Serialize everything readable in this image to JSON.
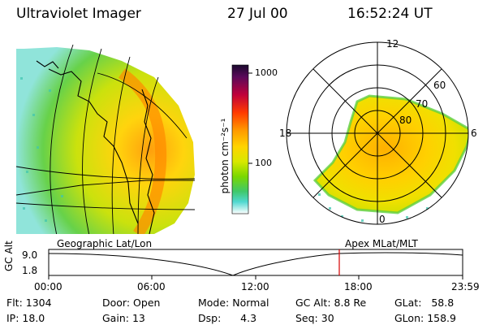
{
  "header": {
    "instrument": "Ultraviolet Imager",
    "date": "27 Jul 00",
    "time": "16:52:24 UT"
  },
  "colorbar": {
    "label": "photon cm⁻²s⁻¹",
    "ticks": [
      "1000",
      "100"
    ],
    "scale": "log"
  },
  "polar": {
    "mlt_labels": [
      "12",
      "18",
      "6",
      "0"
    ],
    "lat_labels": [
      "60",
      "70",
      "80"
    ]
  },
  "projection_labels": {
    "left": "Geographic Lat/Lon",
    "right": "Apex MLat/MLT"
  },
  "altitude_plot": {
    "ylabel": "GC Alt",
    "y_ticks": [
      "9.0",
      "1.8"
    ],
    "x_ticks": [
      "00:00",
      "06:00",
      "12:00",
      "18:00",
      "23:59"
    ],
    "marker_time": "16:52",
    "marker_color": "#d40000",
    "curve_color": "#000000"
  },
  "footer": {
    "flt_label": "Flt:",
    "flt_value": "1304",
    "ip_label": "IP:",
    "ip_value": "18.0",
    "door_label": "Door:",
    "door_value": "Open",
    "gain_label": "Gain:",
    "gain_value": "13",
    "mode_label": "Mode:",
    "mode_value": "Normal",
    "dsp_label": "Dsp:",
    "dsp_value": "4.3",
    "gcalt_label": "GC Alt:",
    "gcalt_value": "8.8 Re",
    "seq_label": "Seq:",
    "seq_value": "30",
    "glat_label": "GLat:",
    "glat_value": "58.8",
    "glon_label": "GLon:",
    "glon_value": "158.9"
  }
}
